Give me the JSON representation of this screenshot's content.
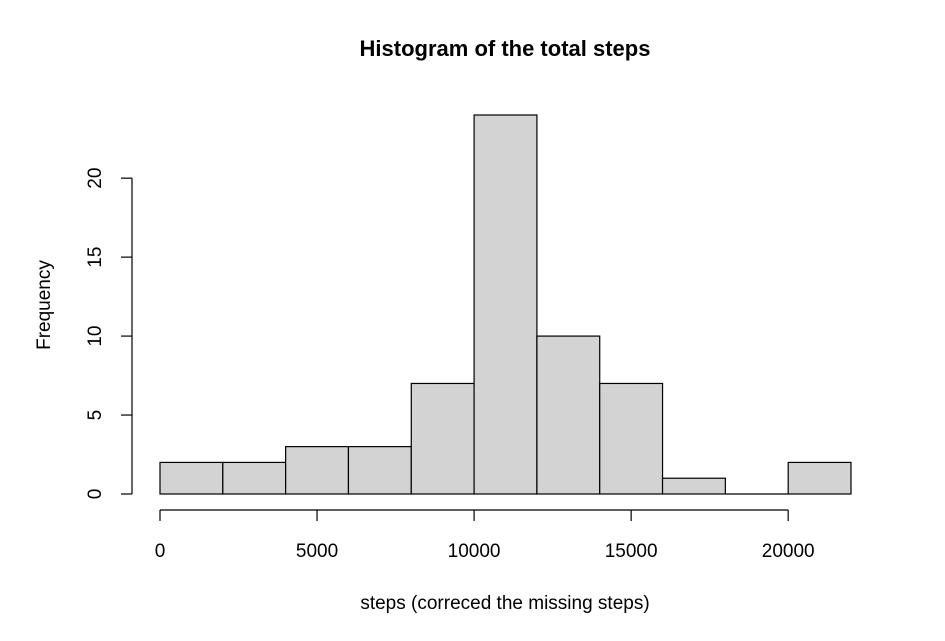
{
  "chart_data": {
    "type": "bar",
    "subtype": "histogram",
    "title": "Histogram of the total steps",
    "xlabel": "steps (correced the missing steps)",
    "ylabel": "Frequency",
    "bins": [
      {
        "start": 0,
        "end": 2000,
        "count": 2
      },
      {
        "start": 2000,
        "end": 4000,
        "count": 2
      },
      {
        "start": 4000,
        "end": 6000,
        "count": 3
      },
      {
        "start": 6000,
        "end": 8000,
        "count": 3
      },
      {
        "start": 8000,
        "end": 10000,
        "count": 7
      },
      {
        "start": 10000,
        "end": 12000,
        "count": 24
      },
      {
        "start": 12000,
        "end": 14000,
        "count": 10
      },
      {
        "start": 14000,
        "end": 16000,
        "count": 7
      },
      {
        "start": 16000,
        "end": 18000,
        "count": 1
      },
      {
        "start": 18000,
        "end": 20000,
        "count": 0
      },
      {
        "start": 20000,
        "end": 22000,
        "count": 2
      }
    ],
    "xlim": [
      0,
      22000
    ],
    "ylim": [
      0,
      24
    ],
    "x_ticks": [
      0,
      5000,
      10000,
      15000,
      20000
    ],
    "x_tick_labels": [
      "0",
      "5000",
      "10000",
      "15000",
      "20000"
    ],
    "y_ticks": [
      0,
      5,
      10,
      15,
      20
    ],
    "y_tick_labels": [
      "0",
      "5",
      "10",
      "15",
      "20"
    ],
    "grid": false,
    "legend": "none",
    "colors": {
      "bar_fill": "#d3d3d3",
      "bar_stroke": "#000000",
      "axis": "#000000"
    }
  }
}
